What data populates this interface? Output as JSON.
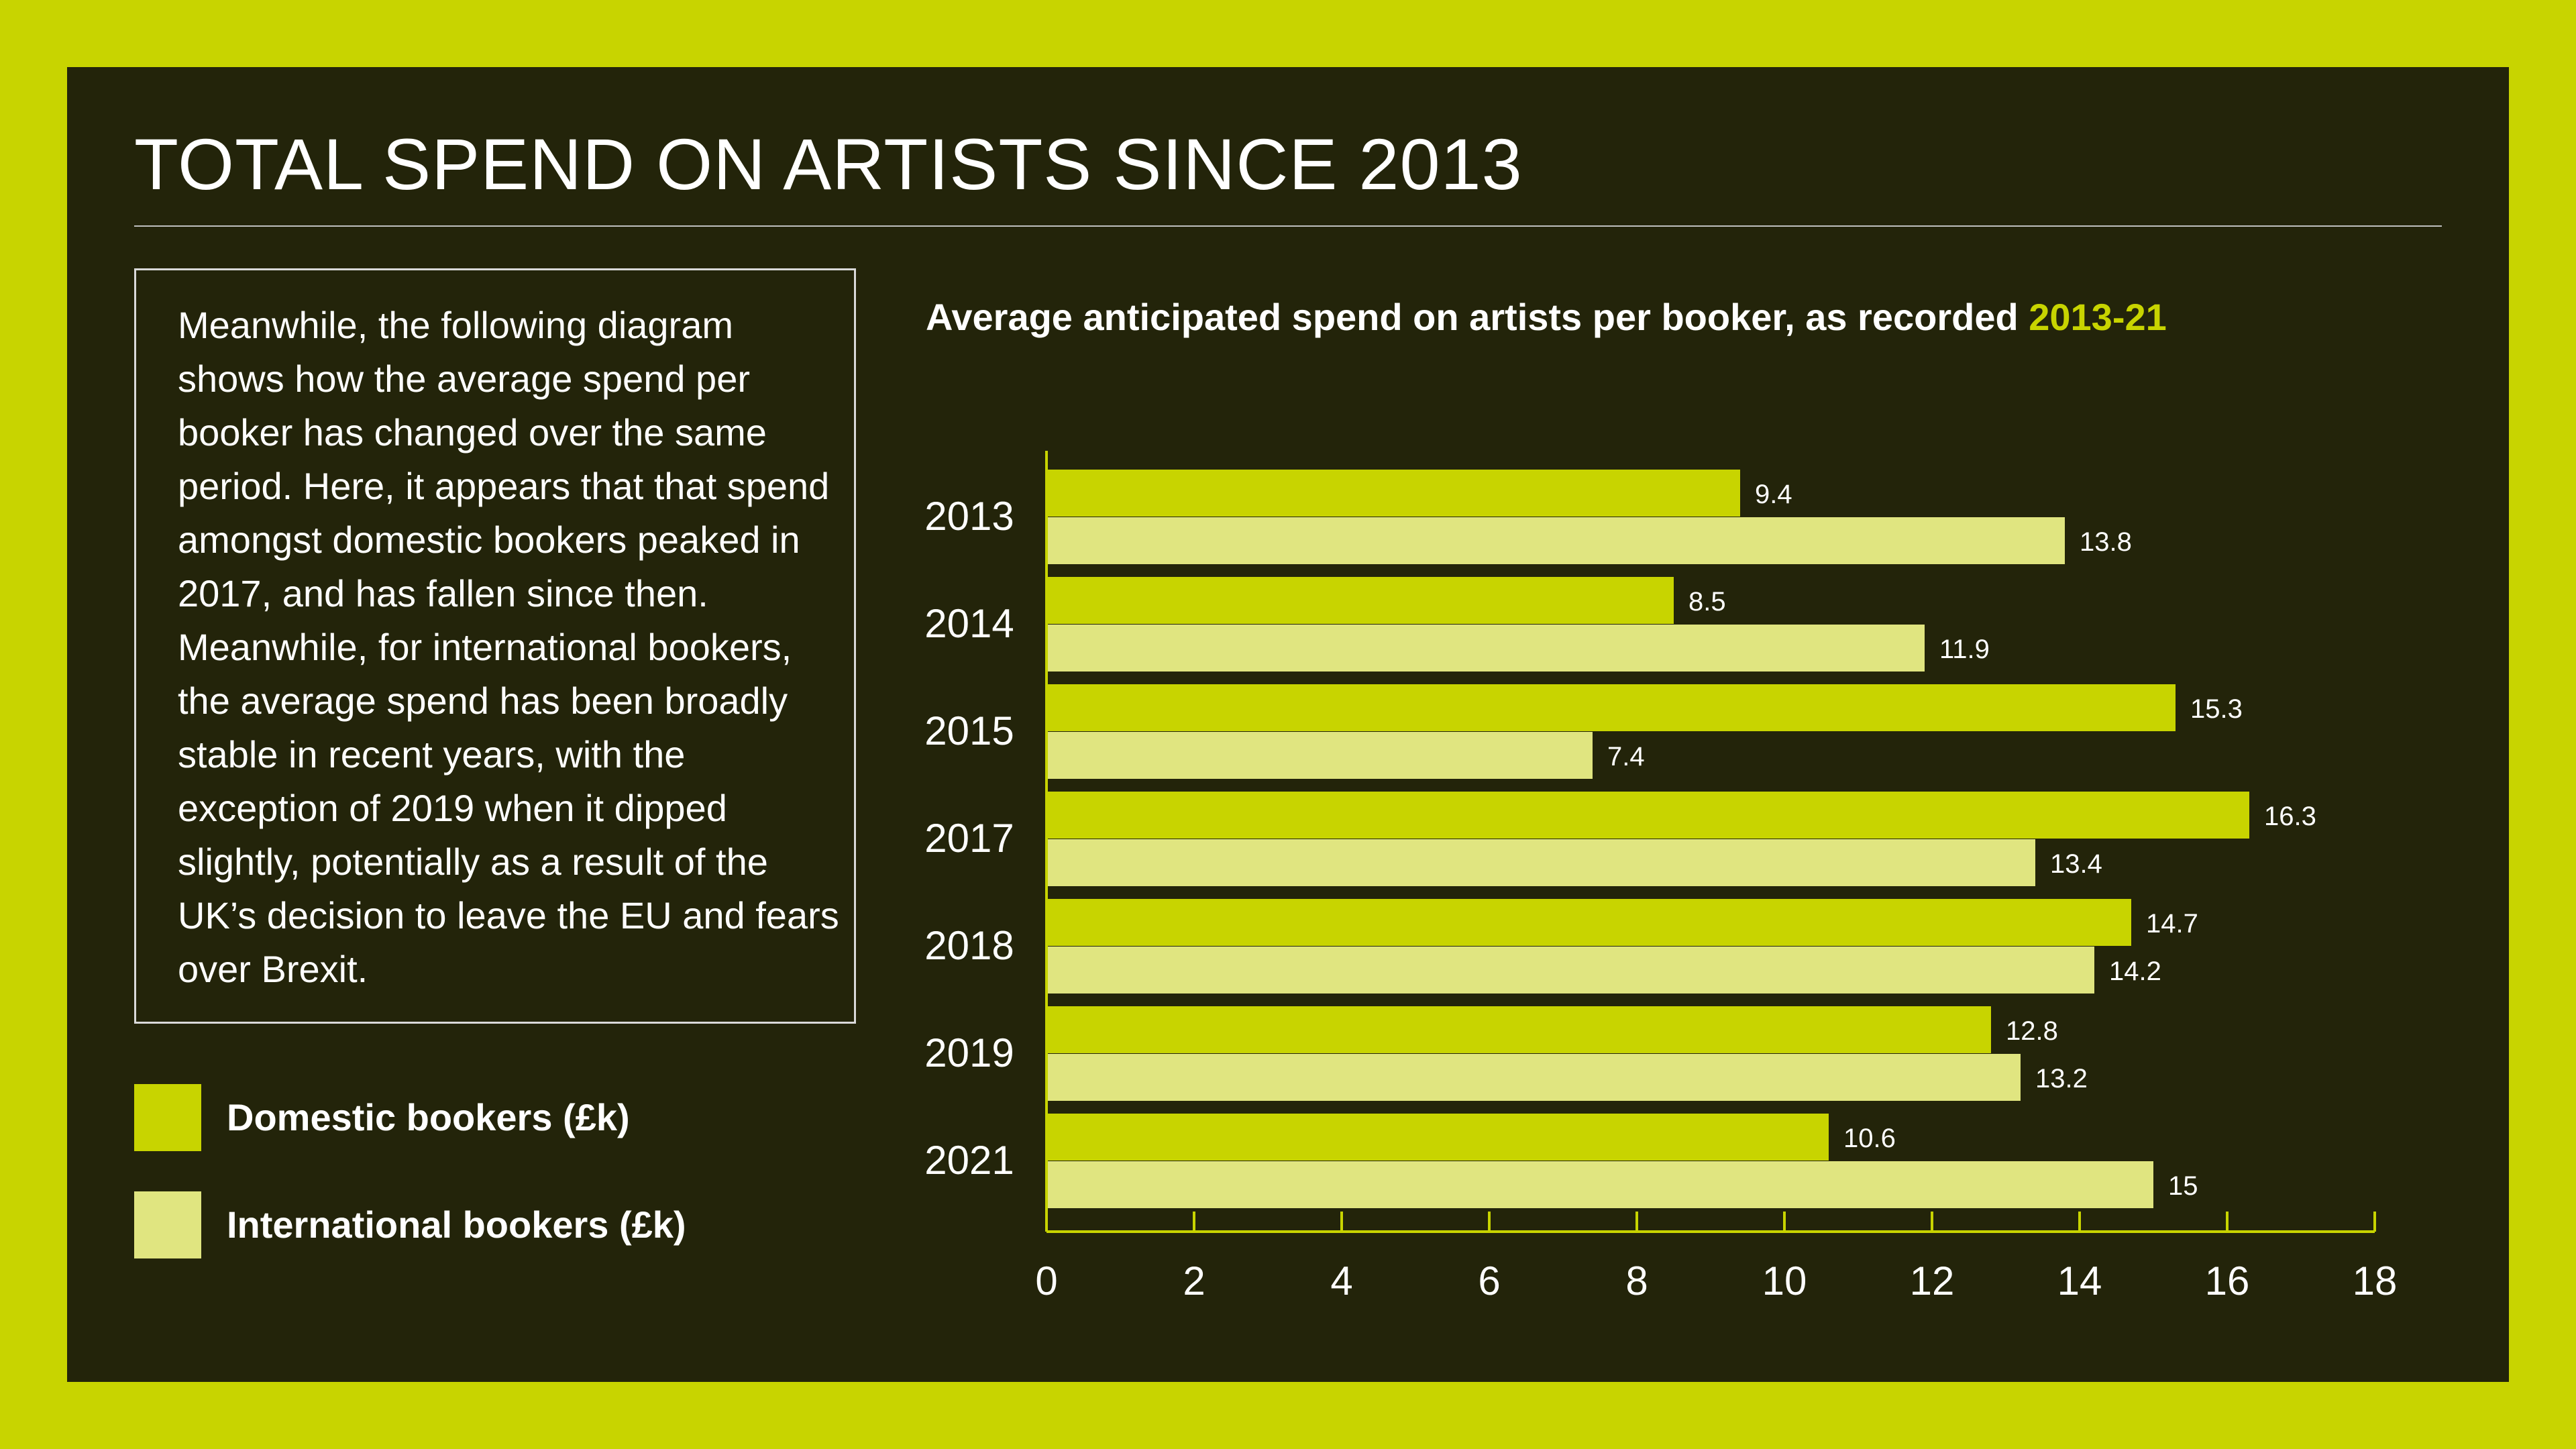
{
  "title": "TOTAL SPEND ON ARTISTS SINCE 2013",
  "description": "Meanwhile, the following diagram shows how the average spend per booker has changed over the same period. Here, it appears that that spend amongst domestic bookers peaked in 2017, and has fallen since then. Meanwhile, for international bookers, the average spend has been broadly stable in recent years, with the exception of 2019 when it dipped slightly, potentially as a result of the UK’s decision to leave the EU and fears over Brexit.",
  "legend": {
    "domestic": "Domestic bookers (£k)",
    "international": "International bookers (£k)"
  },
  "colors": {
    "background": "#c8d400",
    "panel": "#23240a",
    "domestic": "#c8d400",
    "international": "#e0e580",
    "axis": "#c8d400",
    "text": "#ffffff"
  },
  "chart_data": {
    "type": "bar",
    "orientation": "horizontal",
    "title": "Average anticipated spend on artists per booker, as recorded",
    "title_highlight": "2013-21",
    "categories": [
      "2013",
      "2014",
      "2015",
      "2017",
      "2018",
      "2019",
      "2021"
    ],
    "series": [
      {
        "name": "Domestic bookers (£k)",
        "values": [
          9.4,
          8.5,
          15.3,
          16.3,
          14.7,
          12.8,
          10.6
        ]
      },
      {
        "name": "International bookers (£k)",
        "values": [
          13.8,
          11.9,
          7.4,
          13.4,
          14.2,
          13.2,
          15
        ]
      }
    ],
    "value_labels": [
      [
        "9.4",
        "8.5",
        "15.3",
        "16.3",
        "14.7",
        "12.8",
        "10.6"
      ],
      [
        "13.8",
        "11.9",
        "7.4",
        "13.4",
        "14.2",
        "13.2",
        "15"
      ]
    ],
    "xlim": [
      0,
      18
    ],
    "xticks": [
      "0",
      "2",
      "4",
      "6",
      "8",
      "10",
      "12",
      "14",
      "16",
      "18"
    ],
    "xlabel": "",
    "ylabel": "",
    "grid": false,
    "legend_position": "left"
  }
}
